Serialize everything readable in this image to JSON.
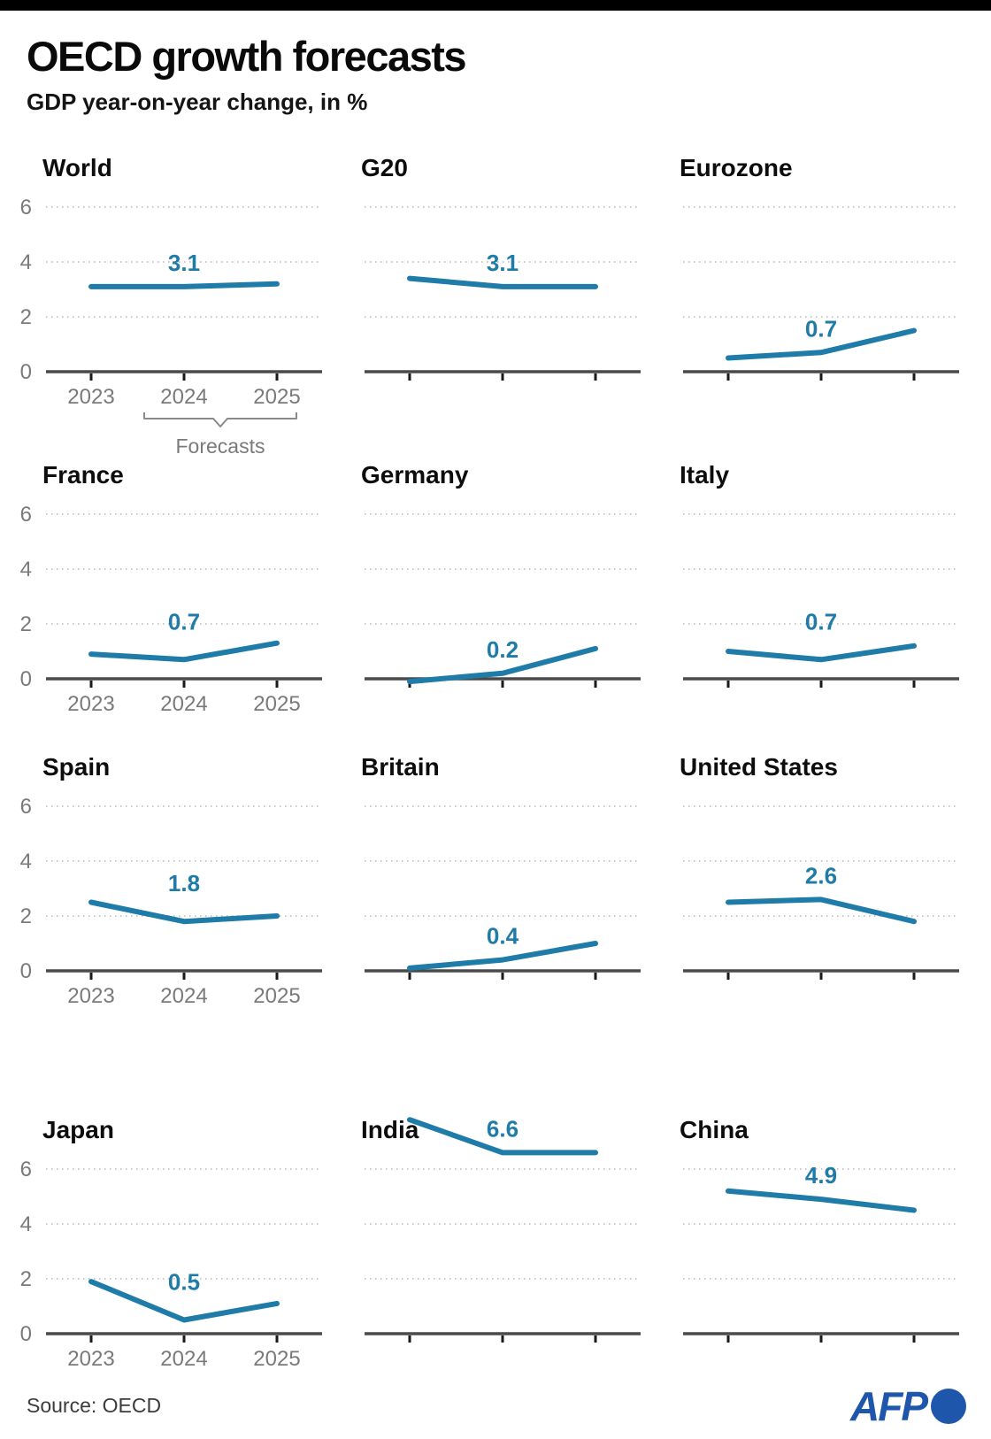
{
  "header": {
    "title": "OECD growth forecasts",
    "subtitle": "GDP year-on-year change, in %"
  },
  "footer": {
    "source": "Source: OECD",
    "logo_text": "AFP"
  },
  "colors": {
    "top_bar": "#000000",
    "line": "#1f7ba8",
    "value_label": "#1f7ba8",
    "axis": "#4a4a4a",
    "tick": "#1a1a1a",
    "gridline": "#c8c8c8",
    "axis_label": "#7a7a7a",
    "bracket": "#8a8a8a",
    "logo_blue": "#1e56ac"
  },
  "chart_data": {
    "type": "line",
    "x": [
      "2023",
      "2024",
      "2025"
    ],
    "ylim": [
      0,
      6.5
    ],
    "yticks": [
      "0",
      "2",
      "4",
      "6"
    ],
    "grid": "dotted-horizontal",
    "forecast_note": "Forecasts",
    "forecast_years": [
      "2024",
      "2025"
    ],
    "charts": [
      {
        "title": "World",
        "values": [
          3.1,
          3.1,
          3.2
        ],
        "label": "3.1",
        "y_axis_labels": true,
        "x_axis_labels": true,
        "forecast_bracket": true
      },
      {
        "title": "G20",
        "values": [
          3.4,
          3.1,
          3.1
        ],
        "label": "3.1",
        "y_axis_labels": false,
        "x_axis_labels": false,
        "forecast_bracket": false
      },
      {
        "title": "Eurozone",
        "values": [
          0.5,
          0.7,
          1.5
        ],
        "label": "0.7",
        "y_axis_labels": false,
        "x_axis_labels": false,
        "forecast_bracket": false
      },
      {
        "title": "France",
        "values": [
          0.9,
          0.7,
          1.3
        ],
        "label": "0.7",
        "y_axis_labels": true,
        "x_axis_labels": true,
        "forecast_bracket": false
      },
      {
        "title": "Germany",
        "values": [
          -0.1,
          0.2,
          1.1
        ],
        "label": "0.2",
        "y_axis_labels": false,
        "x_axis_labels": false,
        "forecast_bracket": false
      },
      {
        "title": "Italy",
        "values": [
          1.0,
          0.7,
          1.2
        ],
        "label": "0.7",
        "y_axis_labels": false,
        "x_axis_labels": false,
        "forecast_bracket": false
      },
      {
        "title": "Spain",
        "values": [
          2.5,
          1.8,
          2.0
        ],
        "label": "1.8",
        "y_axis_labels": true,
        "x_axis_labels": true,
        "forecast_bracket": false
      },
      {
        "title": "Britain",
        "values": [
          0.1,
          0.4,
          1.0
        ],
        "label": "0.4",
        "y_axis_labels": false,
        "x_axis_labels": false,
        "forecast_bracket": false
      },
      {
        "title": "United States",
        "values": [
          2.5,
          2.6,
          1.8
        ],
        "label": "2.6",
        "y_axis_labels": false,
        "x_axis_labels": false,
        "forecast_bracket": false
      },
      {
        "title": "Japan",
        "values": [
          1.9,
          0.5,
          1.1
        ],
        "label": "0.5",
        "y_axis_labels": true,
        "x_axis_labels": true,
        "forecast_bracket": false
      },
      {
        "title": "India",
        "values": [
          7.8,
          6.6,
          6.6
        ],
        "label": "6.6",
        "y_axis_labels": false,
        "x_axis_labels": false,
        "forecast_bracket": false
      },
      {
        "title": "China",
        "values": [
          5.2,
          4.9,
          4.5
        ],
        "label": "4.9",
        "y_axis_labels": false,
        "x_axis_labels": false,
        "forecast_bracket": false
      }
    ]
  }
}
